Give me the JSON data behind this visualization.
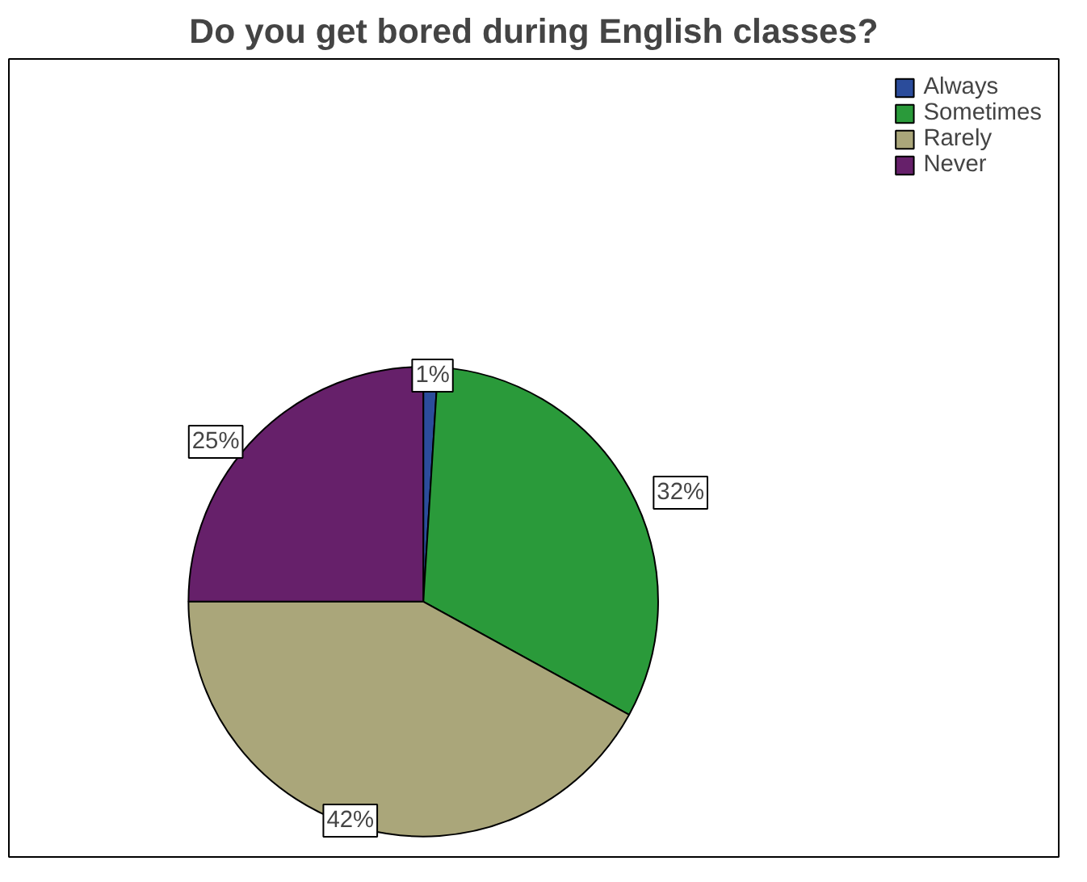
{
  "chart_data": {
    "type": "pie",
    "title": "Do you get bored during English classes?",
    "categories": [
      "Always",
      "Sometimes",
      "Rarely",
      "Never"
    ],
    "values": [
      1,
      32,
      42,
      25
    ],
    "colors": [
      "#2b4c9b",
      "#2a9a3a",
      "#aaa67a",
      "#66206a"
    ],
    "value_labels": [
      "1%",
      "32%",
      "42%",
      "25%"
    ],
    "legend": "top right"
  }
}
